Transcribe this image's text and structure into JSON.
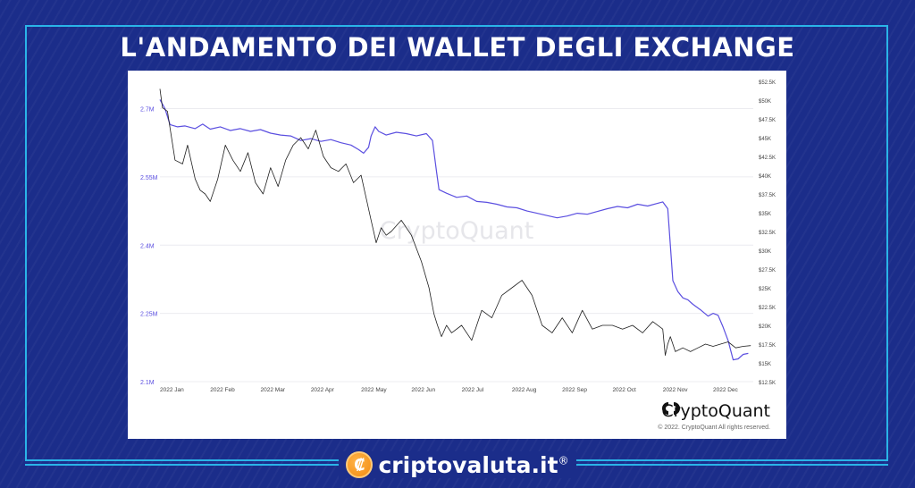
{
  "header": {
    "title": "L'ANDAMENTO DEI WALLET DEGLI EXCHANGE"
  },
  "chart_data": {
    "type": "line",
    "title": "",
    "xlabel": "",
    "ylabel": "",
    "x_ticks": [
      "2022 Jan",
      "2022 Feb",
      "2022 Mar",
      "2022 Apr",
      "2022 May",
      "2022 Jun",
      "2022 Jul",
      "2022 Aug",
      "2022 Sep",
      "2022 Oct",
      "2022 Nov",
      "2022 Dec"
    ],
    "x_range": [
      0,
      11.8
    ],
    "y_left": {
      "ticks": [
        "2.7M",
        "2.55M",
        "2.4M",
        "2.25M",
        "2.1M"
      ],
      "tick_values": [
        2.7,
        2.55,
        2.4,
        2.25,
        2.1
      ],
      "range": [
        2.1,
        2.76
      ]
    },
    "y_right": {
      "ticks": [
        "$52.5K",
        "$50K",
        "$47.5K",
        "$45K",
        "$42.5K",
        "$40K",
        "$37.5K",
        "$35K",
        "$32.5K",
        "$30K",
        "$27.5K",
        "$25K",
        "$22.5K",
        "$20K",
        "$17.5K",
        "$15K",
        "$12.5K"
      ],
      "tick_values": [
        52.5,
        50,
        47.5,
        45,
        42.5,
        40,
        37.5,
        35,
        32.5,
        30,
        27.5,
        25,
        22.5,
        20,
        17.5,
        15,
        12.5
      ],
      "range": [
        12.5,
        52.5
      ]
    },
    "grid": true,
    "series": [
      {
        "axis": "left",
        "color": "#5b4fe0",
        "x": [
          0,
          0.1,
          0.2,
          0.35,
          0.5,
          0.7,
          0.85,
          1.0,
          1.2,
          1.4,
          1.6,
          1.8,
          2.0,
          2.2,
          2.4,
          2.6,
          2.8,
          3.0,
          3.2,
          3.4,
          3.6,
          3.8,
          3.95,
          4.05,
          4.15,
          4.2,
          4.28,
          4.35,
          4.5,
          4.7,
          4.9,
          5.1,
          5.3,
          5.42,
          5.5,
          5.55,
          5.7,
          5.9,
          6.1,
          6.3,
          6.5,
          6.7,
          6.9,
          7.1,
          7.3,
          7.5,
          7.7,
          7.9,
          8.1,
          8.3,
          8.5,
          8.7,
          8.9,
          9.1,
          9.3,
          9.5,
          9.7,
          9.9,
          10.0,
          10.1,
          10.15,
          10.2,
          10.3,
          10.4,
          10.5,
          10.6,
          10.75,
          10.9,
          11.0,
          11.1,
          11.2,
          11.3,
          11.4,
          11.5,
          11.6,
          11.7
        ],
        "y": [
          2.72,
          2.7,
          2.665,
          2.66,
          2.662,
          2.656,
          2.666,
          2.655,
          2.66,
          2.652,
          2.656,
          2.65,
          2.654,
          2.646,
          2.642,
          2.64,
          2.63,
          2.634,
          2.628,
          2.632,
          2.625,
          2.62,
          2.61,
          2.602,
          2.615,
          2.64,
          2.66,
          2.65,
          2.642,
          2.648,
          2.645,
          2.64,
          2.645,
          2.63,
          2.562,
          2.522,
          2.514,
          2.505,
          2.508,
          2.496,
          2.494,
          2.49,
          2.484,
          2.482,
          2.475,
          2.47,
          2.465,
          2.46,
          2.464,
          2.47,
          2.468,
          2.474,
          2.48,
          2.485,
          2.482,
          2.49,
          2.486,
          2.492,
          2.495,
          2.48,
          2.4,
          2.322,
          2.298,
          2.284,
          2.28,
          2.27,
          2.258,
          2.244,
          2.25,
          2.246,
          2.22,
          2.19,
          2.148,
          2.15,
          2.16,
          2.162
        ]
      },
      {
        "axis": "right",
        "color": "#1f1f1f",
        "x": [
          0,
          0.05,
          0.15,
          0.3,
          0.45,
          0.55,
          0.7,
          0.8,
          0.9,
          1.0,
          1.15,
          1.3,
          1.45,
          1.6,
          1.75,
          1.9,
          2.05,
          2.2,
          2.35,
          2.5,
          2.65,
          2.8,
          2.95,
          3.1,
          3.25,
          3.4,
          3.55,
          3.7,
          3.85,
          4.0,
          4.1,
          4.2,
          4.3,
          4.4,
          4.5,
          4.6,
          4.8,
          5.0,
          5.2,
          5.35,
          5.45,
          5.52,
          5.6,
          5.7,
          5.8,
          6.0,
          6.2,
          6.4,
          6.6,
          6.8,
          7.0,
          7.2,
          7.4,
          7.6,
          7.8,
          8.0,
          8.2,
          8.4,
          8.6,
          8.8,
          9.0,
          9.2,
          9.4,
          9.6,
          9.8,
          10.0,
          10.05,
          10.1,
          10.15,
          10.25,
          10.4,
          10.55,
          10.7,
          10.85,
          11.0,
          11.15,
          11.3,
          11.45,
          11.6,
          11.75
        ],
        "y": [
          51.5,
          49,
          48.5,
          42,
          41.5,
          44,
          39.5,
          38,
          37.5,
          36.5,
          39.5,
          44,
          42,
          40.5,
          43,
          39,
          37.5,
          41,
          38.5,
          42,
          44,
          45,
          43.5,
          46,
          42.5,
          41,
          40.5,
          41.5,
          39,
          40,
          37,
          34,
          31,
          33,
          32,
          32.5,
          34,
          32,
          28.5,
          25,
          21.5,
          20,
          18.5,
          20,
          19,
          20,
          18,
          22,
          21,
          24,
          25,
          26,
          24,
          20,
          19,
          21,
          19,
          22,
          19.5,
          20,
          20,
          19.5,
          20,
          19,
          20.5,
          19.5,
          16,
          17.5,
          18.5,
          16.5,
          17,
          16.5,
          17,
          17.5,
          17.2,
          17.5,
          17.8,
          17,
          17.2,
          17.3
        ]
      }
    ]
  },
  "branding": {
    "watermark": "CryptoQuant",
    "logo_text": "CryptoQuant",
    "copyright": "© 2022. CryptoQuant All rights reserved."
  },
  "footer": {
    "brand": "criptovaluta.it",
    "registered": "®",
    "coin_symbol": "₡"
  }
}
